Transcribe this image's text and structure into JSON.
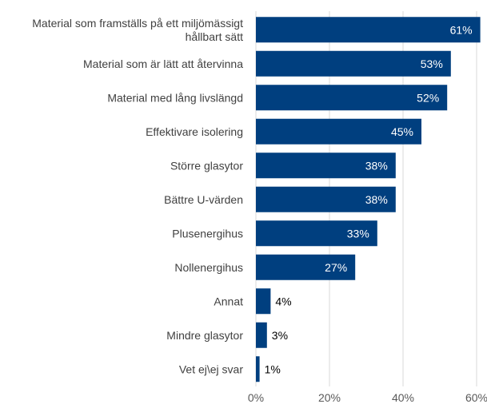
{
  "chart_data": {
    "type": "bar",
    "orientation": "horizontal",
    "categories": [
      [
        "Material som framställs på ett miljömässigt",
        "hållbart sätt"
      ],
      [
        "Material som är lätt att återvinna"
      ],
      [
        "Material med lång livslängd"
      ],
      [
        "Effektivare isolering"
      ],
      [
        "Större glasytor"
      ],
      [
        "Bättre U-värden"
      ],
      [
        "Plusenergihus"
      ],
      [
        "Nollenergihus"
      ],
      [
        "Annat"
      ],
      [
        "Mindre glasytor"
      ],
      [
        "Vet ej\\ej svar"
      ]
    ],
    "values": [
      61,
      53,
      52,
      45,
      38,
      38,
      33,
      27,
      4,
      3,
      1
    ],
    "data_labels": [
      "61%",
      "53%",
      "52%",
      "45%",
      "38%",
      "38%",
      "33%",
      "27%",
      "4%",
      "3%",
      "1%"
    ],
    "xlim": [
      0,
      60
    ],
    "x_ticks": [
      0,
      20,
      40,
      60
    ],
    "x_tick_labels": [
      "0%",
      "20%",
      "40%",
      "60%"
    ],
    "grid": "vertical",
    "bar_color": "#003f7f",
    "gridline_color": "#d9d9d9",
    "inside_label_color": "#ffffff",
    "outside_label_color": "#000000",
    "category_label_color": "#404040",
    "tick_label_color": "#595959",
    "title": "",
    "xlabel": "",
    "ylabel": ""
  }
}
